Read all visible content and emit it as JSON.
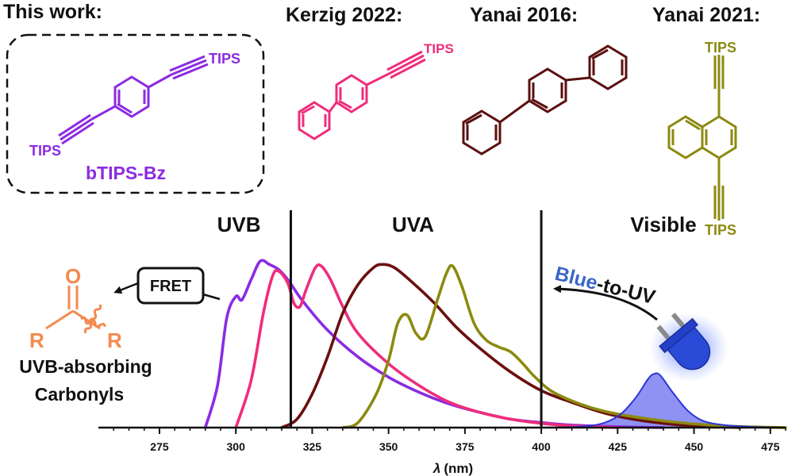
{
  "headers": {
    "this_work": "This work:",
    "kerzig": "Kerzig 2022:",
    "yanai2016": "Yanai 2016:",
    "yanai2021": "Yanai 2021:"
  },
  "molecules": {
    "btips_bz": {
      "name": "bTIPS-Bz",
      "group_top": "TIPS",
      "group_bottom": "TIPS",
      "color": "#8b2be2"
    },
    "kerzig": {
      "group": "TIPS",
      "color": "#ef2d7b"
    },
    "yanai2016": {
      "color": "#5b0f0f"
    },
    "yanai2021": {
      "group_top": "TIPS",
      "group_bottom": "TIPS",
      "color": "#8c8a10"
    },
    "carbonyl": {
      "o_label": "O",
      "r_left": "R",
      "r_right": "R",
      "color": "#f5894e",
      "caption_line1": "UVB-absorbing",
      "caption_line2": "Carbonyls"
    }
  },
  "annotations": {
    "fret": "FRET",
    "blue_part": "Blue",
    "rest_part": "-to-UV",
    "blue_color": "#3a67c9"
  },
  "chart_data": {
    "type": "area",
    "xlabel_symbol": "λ",
    "xlabel_unit": "(nm)",
    "ylabel": "",
    "xlim": [
      255,
      480
    ],
    "ylim": [
      0,
      1
    ],
    "xticks": [
      275,
      300,
      325,
      350,
      375,
      400,
      425,
      450,
      475
    ],
    "regions": [
      {
        "label": "UVB",
        "center": 301
      },
      {
        "label": "UVA",
        "center": 358
      },
      {
        "label": "Visible",
        "center": 440
      }
    ],
    "boundaries": [
      318,
      400
    ],
    "series": [
      {
        "color": "#8b2be2",
        "fill": false,
        "points": [
          [
            290,
            0
          ],
          [
            294,
            0.25
          ],
          [
            297,
            0.65
          ],
          [
            300,
            0.78
          ],
          [
            302,
            0.76
          ],
          [
            305,
            0.88
          ],
          [
            308,
            0.99
          ],
          [
            311,
            0.97
          ],
          [
            314,
            0.94
          ],
          [
            317,
            0.88
          ],
          [
            322,
            0.75
          ],
          [
            330,
            0.58
          ],
          [
            340,
            0.42
          ],
          [
            350,
            0.3
          ],
          [
            360,
            0.21
          ],
          [
            370,
            0.14
          ],
          [
            380,
            0.09
          ],
          [
            390,
            0.05
          ],
          [
            400,
            0.03
          ],
          [
            410,
            0.015
          ],
          [
            425,
            0.005
          ],
          [
            440,
            0
          ]
        ]
      },
      {
        "color": "#ef2d7b",
        "fill": false,
        "points": [
          [
            300,
            0
          ],
          [
            305,
            0.28
          ],
          [
            309,
            0.68
          ],
          [
            312,
            0.9
          ],
          [
            314,
            0.93
          ],
          [
            317,
            0.86
          ],
          [
            319,
            0.74
          ],
          [
            321,
            0.72
          ],
          [
            323,
            0.82
          ],
          [
            326,
            0.95
          ],
          [
            328,
            0.96
          ],
          [
            331,
            0.88
          ],
          [
            335,
            0.72
          ],
          [
            340,
            0.56
          ],
          [
            350,
            0.38
          ],
          [
            360,
            0.25
          ],
          [
            370,
            0.15
          ],
          [
            380,
            0.09
          ],
          [
            390,
            0.05
          ],
          [
            400,
            0.025
          ],
          [
            410,
            0.01
          ],
          [
            425,
            0
          ]
        ]
      },
      {
        "color": "#6b0f0f",
        "fill": false,
        "points": [
          [
            315,
            0
          ],
          [
            320,
            0.05
          ],
          [
            325,
            0.2
          ],
          [
            330,
            0.42
          ],
          [
            335,
            0.68
          ],
          [
            340,
            0.85
          ],
          [
            345,
            0.95
          ],
          [
            348,
            0.97
          ],
          [
            352,
            0.95
          ],
          [
            358,
            0.86
          ],
          [
            365,
            0.74
          ],
          [
            372,
            0.6
          ],
          [
            380,
            0.47
          ],
          [
            390,
            0.33
          ],
          [
            400,
            0.22
          ],
          [
            410,
            0.15
          ],
          [
            420,
            0.09
          ],
          [
            430,
            0.05
          ],
          [
            440,
            0.025
          ],
          [
            450,
            0.01
          ],
          [
            465,
            0
          ]
        ]
      },
      {
        "color": "#8c8a10",
        "fill": false,
        "points": [
          [
            335,
            0
          ],
          [
            340,
            0.03
          ],
          [
            346,
            0.2
          ],
          [
            350,
            0.4
          ],
          [
            353,
            0.62
          ],
          [
            356,
            0.67
          ],
          [
            359,
            0.56
          ],
          [
            362,
            0.54
          ],
          [
            366,
            0.76
          ],
          [
            369,
            0.92
          ],
          [
            371,
            0.96
          ],
          [
            374,
            0.84
          ],
          [
            378,
            0.62
          ],
          [
            382,
            0.52
          ],
          [
            386,
            0.48
          ],
          [
            390,
            0.45
          ],
          [
            394,
            0.38
          ],
          [
            398,
            0.3
          ],
          [
            405,
            0.2
          ],
          [
            420,
            0.1
          ],
          [
            440,
            0.04
          ],
          [
            460,
            0.01
          ],
          [
            480,
            0
          ]
        ]
      },
      {
        "color": "#2b34d8",
        "fill": true,
        "fill_color": "#7b7ff0",
        "points": [
          [
            400,
            0
          ],
          [
            412,
            0.005
          ],
          [
            420,
            0.025
          ],
          [
            426,
            0.08
          ],
          [
            431,
            0.18
          ],
          [
            435,
            0.29
          ],
          [
            437,
            0.32
          ],
          [
            439,
            0.31
          ],
          [
            443,
            0.21
          ],
          [
            448,
            0.1
          ],
          [
            453,
            0.04
          ],
          [
            460,
            0.015
          ],
          [
            470,
            0.004
          ],
          [
            478,
            0
          ]
        ]
      }
    ]
  }
}
